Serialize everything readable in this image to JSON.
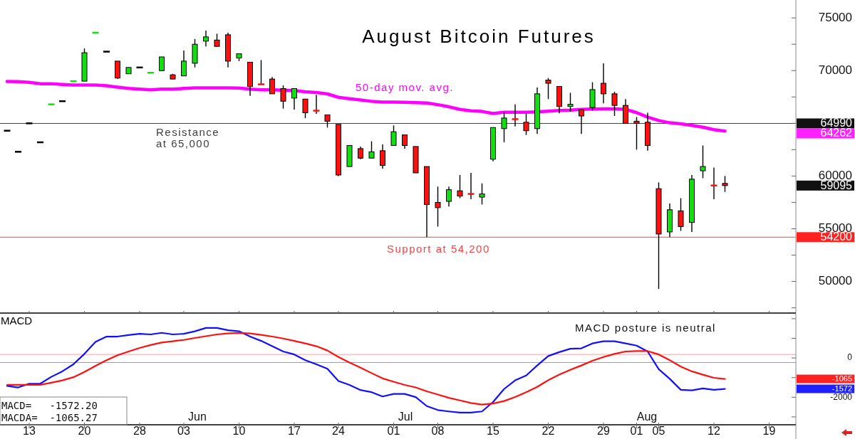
{
  "chart_data": [
    {
      "type": "candlestick",
      "title": "August Bitcoin Futures",
      "tick_labels": "y",
      "categories": [
        null,
        null,
        "13",
        null,
        null,
        null,
        null,
        "20",
        null,
        null,
        null,
        null,
        "28",
        null,
        null,
        null,
        "03",
        null,
        null,
        null,
        null,
        "10",
        null,
        null,
        null,
        null,
        "17",
        null,
        null,
        null,
        "24",
        null,
        null,
        null,
        null,
        "01",
        null,
        null,
        null,
        "08",
        null,
        null,
        null,
        null,
        "15",
        null,
        null,
        null,
        null,
        "22",
        null,
        null,
        null,
        null,
        "29",
        null,
        null,
        "01",
        null,
        "05",
        null,
        null,
        null,
        null,
        "12",
        null,
        null,
        null,
        null,
        "19",
        null,
        null
      ],
      "ohlc": [
        [
          64300,
          64300,
          64300,
          64300
        ],
        [
          62300,
          62300,
          62300,
          62300
        ],
        [
          65000,
          65000,
          65000,
          65000
        ],
        [
          63200,
          63200,
          63200,
          63200
        ],
        [
          66800,
          66800,
          66800,
          66800
        ],
        [
          67100,
          67100,
          67100,
          67100
        ],
        [
          69000,
          69000,
          69000,
          69000
        ],
        [
          69000,
          72100,
          69000,
          71700
        ],
        [
          73600,
          73600,
          73600,
          73600
        ],
        [
          71800,
          71800,
          71800,
          71800
        ],
        [
          70900,
          70900,
          69200,
          69300
        ],
        [
          69700,
          70300,
          69700,
          70300
        ],
        [
          70300,
          70300,
          70300,
          70300
        ],
        [
          69800,
          69800,
          69800,
          69800
        ],
        [
          70000,
          71300,
          70000,
          71300
        ],
        [
          69600,
          69700,
          69200,
          69200
        ],
        [
          69500,
          71900,
          69500,
          70900
        ],
        [
          70700,
          73000,
          70300,
          72500
        ],
        [
          72800,
          73800,
          72300,
          73200
        ],
        [
          72900,
          73500,
          72300,
          72300
        ],
        [
          73400,
          73600,
          70300,
          70900
        ],
        [
          71200,
          71600,
          70900,
          71600
        ],
        [
          70800,
          70800,
          67600,
          68500
        ],
        [
          68700,
          71000,
          68700,
          68700
        ],
        [
          69200,
          69400,
          67800,
          67800
        ],
        [
          68300,
          68600,
          66400,
          67100
        ],
        [
          67400,
          68300,
          66300,
          68300
        ],
        [
          67300,
          67300,
          65500,
          66000
        ],
        [
          66200,
          67700,
          65900,
          66200
        ],
        [
          65800,
          65800,
          64600,
          65200
        ],
        [
          64900,
          64900,
          60000,
          60100
        ],
        [
          60900,
          62900,
          60900,
          62900
        ],
        [
          62600,
          62800,
          61600,
          61700
        ],
        [
          61700,
          63300,
          61700,
          62300
        ],
        [
          62400,
          63000,
          60700,
          61000
        ],
        [
          62900,
          64800,
          62900,
          64200
        ],
        [
          63900,
          63900,
          62600,
          62900
        ],
        [
          62800,
          62800,
          60300,
          60300
        ],
        [
          60900,
          60900,
          54200,
          57300
        ],
        [
          57500,
          59000,
          55200,
          57000
        ],
        [
          57600,
          59000,
          57100,
          58700
        ],
        [
          58600,
          60100,
          57900,
          58100
        ],
        [
          58300,
          60300,
          57800,
          58300
        ],
        [
          58000,
          59300,
          57300,
          58300
        ],
        [
          61600,
          64600,
          61400,
          64600
        ],
        [
          64500,
          66100,
          63200,
          65500
        ],
        [
          65400,
          66800,
          64700,
          65400
        ],
        [
          65100,
          65900,
          63900,
          64300
        ],
        [
          64500,
          68400,
          64000,
          67800
        ],
        [
          69100,
          69300,
          67300,
          68800
        ],
        [
          68500,
          68500,
          65950,
          66600
        ],
        [
          66600,
          67900,
          66100,
          66800
        ],
        [
          66300,
          66300,
          64000,
          65700
        ],
        [
          66500,
          68900,
          66200,
          68200
        ],
        [
          68800,
          70700,
          66900,
          67800
        ],
        [
          67800,
          68000,
          65700,
          66700
        ],
        [
          66700,
          67300,
          65000,
          65000
        ],
        [
          65200,
          65600,
          62500,
          65000
        ],
        [
          65100,
          66000,
          62400,
          62900
        ],
        [
          58800,
          59400,
          49300,
          54500
        ],
        [
          54700,
          57400,
          54200,
          56800
        ],
        [
          56700,
          57900,
          54800,
          55200
        ],
        [
          55600,
          60100,
          54700,
          59700
        ],
        [
          60500,
          62900,
          59800,
          60900
        ],
        [
          59100,
          60800,
          57800,
          59100
        ],
        [
          59300,
          60000,
          58500,
          59095
        ],
        null,
        null,
        null,
        null,
        null,
        null
      ],
      "colors": [
        "#000000",
        "#000000",
        "#000000",
        "#000000",
        "#10e010",
        "#000000",
        "#10e010",
        "#10e010",
        "#10e010",
        "#000000",
        "#ff1010",
        "#10e010",
        "#000000",
        "#10e010",
        "#10e010",
        "#ff1010",
        "#10e010",
        "#10e010",
        "#10e010",
        "#ff1010",
        "#ff1010",
        "#10e010",
        "#ff1010",
        "#ff1010",
        "#ff1010",
        "#ff1010",
        "#10e010",
        "#ff1010",
        "#ff1010",
        "#ff1010",
        "#ff1010",
        "#10e010",
        "#ff1010",
        "#10e010",
        "#ff1010",
        "#10e010",
        "#ff1010",
        "#ff1010",
        "#ff1010",
        "#ff1010",
        "#10e010",
        "#ff1010",
        "#ff1010",
        "#10e010",
        "#10e010",
        "#10e010",
        "#ff1010",
        "#ff1010",
        "#10e010",
        "#ff1010",
        "#ff1010",
        "#10e010",
        "#ff1010",
        "#10e010",
        "#ff1010",
        "#ff1010",
        "#ff1010",
        "#ff1010",
        "#ff1010",
        "#ff1010",
        "#10e010",
        "#ff1010",
        "#10e010",
        "#10e010",
        "#ff1010",
        "#ff1010",
        null,
        null,
        null,
        null,
        null,
        null
      ],
      "series": [
        {
          "type": "line",
          "name": "50-day mov. avg.",
          "color": "#ff00ff",
          "values": [
            68970,
            68950,
            68880,
            68760,
            68760,
            68690,
            68630,
            68630,
            68630,
            68560,
            68430,
            68310,
            68240,
            68180,
            68240,
            68240,
            68310,
            68370,
            68370,
            68370,
            68370,
            68340,
            68240,
            68180,
            68180,
            null,
            68110,
            67990,
            67920,
            67790,
            67470,
            67340,
            67220,
            67090,
            67020,
            67020,
            66990,
            66960,
            66930,
            66770,
            66570,
            66320,
            66190,
            66130,
            65930,
            66060,
            66060,
            66060,
            66090,
            66160,
            66220,
            66250,
            66320,
            66350,
            66380,
            66380,
            66320,
            66020,
            65590,
            65270,
            65050,
            64950,
            64800,
            64630,
            64400,
            64262,
            null,
            null,
            null,
            null,
            null,
            null
          ]
        }
      ],
      "ylim": [
        47000,
        76700
      ],
      "yticks": [
        {
          "value": 47500,
          "label": null
        },
        50000,
        {
          "value": 52500,
          "label": null
        },
        55000,
        {
          "value": 57500,
          "label": null
        },
        60000,
        {
          "value": 62500,
          "label": null
        },
        {
          "value": 65000,
          "label": null
        },
        {
          "value": 67500,
          "label": null
        },
        70000,
        {
          "value": 72500,
          "label": null
        },
        75000
      ],
      "ref_lines": [
        {
          "axis": "y",
          "value": 64990,
          "label": "Resistance\nat 65,000",
          "color": "#404040"
        },
        {
          "axis": "y",
          "value": 54200,
          "label": "Support at 54,200",
          "color": "#ff4040"
        }
      ],
      "annotations": [
        "64990",
        "64262",
        "59095",
        "54200"
      ]
    },
    {
      "type": "line",
      "title": "MACD",
      "categories": [
        null,
        null,
        "13",
        null,
        null,
        null,
        null,
        "20",
        null,
        null,
        null,
        null,
        "28",
        null,
        null,
        null,
        "03",
        null,
        null,
        null,
        null,
        "10",
        null,
        null,
        null,
        null,
        "17",
        null,
        null,
        null,
        "24",
        null,
        null,
        null,
        null,
        "01",
        null,
        null,
        null,
        "08",
        null,
        null,
        null,
        null,
        "15",
        null,
        null,
        null,
        null,
        "22",
        null,
        null,
        null,
        null,
        "29",
        null,
        null,
        "01",
        null,
        "05",
        null,
        null,
        null,
        null,
        "12",
        null,
        null,
        null,
        null,
        "19",
        null,
        null
      ],
      "series": [
        {
          "color": "#1010ff",
          "values": [
            -1420,
            -1500,
            -1310,
            -1310,
            -960,
            -680,
            -320,
            210,
            820,
            1090,
            1090,
            1170,
            1230,
            1200,
            1280,
            1200,
            1230,
            1360,
            1530,
            1530,
            1410,
            1360,
            1090,
            870,
            600,
            330,
            180,
            -110,
            -320,
            -550,
            -1170,
            -1370,
            -1630,
            -1740,
            -1960,
            -1830,
            -1830,
            -1990,
            -2450,
            -2650,
            -2720,
            -2780,
            -2780,
            -2720,
            -2240,
            -1580,
            -1140,
            -890,
            -380,
            100,
            300,
            470,
            490,
            740,
            850,
            850,
            740,
            630,
            330,
            -570,
            -1060,
            -1620,
            -1650,
            -1550,
            -1620,
            -1572.2,
            null,
            null,
            null,
            null,
            null,
            null
          ]
        },
        {
          "color": "#ff1010",
          "values": [
            -1370,
            -1370,
            -1370,
            -1370,
            -1260,
            -1140,
            -980,
            -710,
            -400,
            -110,
            140,
            330,
            510,
            660,
            790,
            850,
            920,
            1020,
            1110,
            1200,
            1250,
            1280,
            1250,
            1180,
            1090,
            990,
            870,
            740,
            600,
            380,
            50,
            -230,
            -490,
            -770,
            -1040,
            -1210,
            -1370,
            -1500,
            -1700,
            -1860,
            -2030,
            -2160,
            -2290,
            -2370,
            -2320,
            -2190,
            -1990,
            -1740,
            -1470,
            -1130,
            -850,
            -600,
            -380,
            -140,
            50,
            210,
            330,
            350,
            350,
            180,
            -110,
            -440,
            -680,
            -850,
            -1010,
            -1065.27,
            null,
            null,
            null,
            null,
            null,
            null
          ]
        }
      ],
      "ylim": [
        -3400,
        2250
      ],
      "yticks": [
        {
          "value": 2000,
          "label": null
        },
        {
          "value": 1000,
          "label": null
        },
        0,
        {
          "value": -1000,
          "label": null
        },
        -2000,
        {
          "value": -3000,
          "label": null
        }
      ],
      "ref_lines": [
        {
          "axis": "y",
          "value": 180,
          "color": "#ffa0a0"
        },
        {
          "axis": "y",
          "value": -230,
          "color": "#9090ff"
        }
      ],
      "annotations": [
        "MACD posture is neutral",
        "MACD=   -1572.20",
        "MACDA=  -1065.27",
        "-1065",
        "-1572",
        "Jun",
        "Jul",
        "Aug"
      ]
    }
  ]
}
